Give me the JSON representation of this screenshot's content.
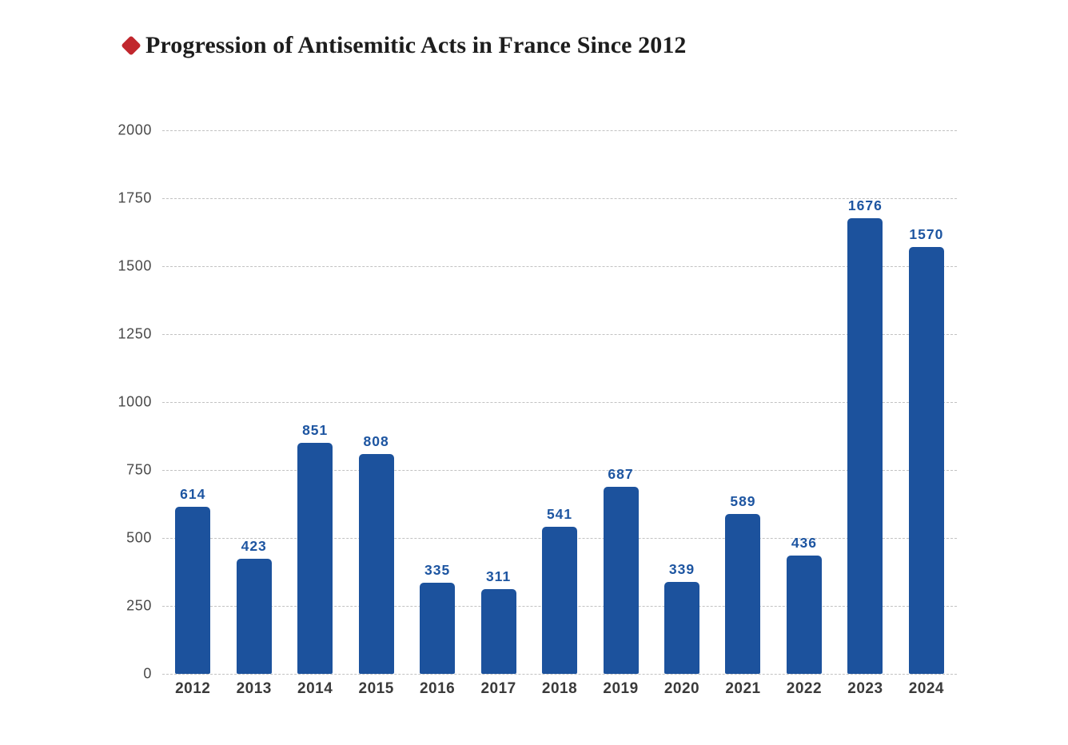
{
  "header": {
    "title": "Progression of Antisemitic Acts in France Since 2012",
    "bullet_icon": "red-diamond"
  },
  "chart_data": {
    "type": "bar",
    "title": "Progression of Antisemitic Acts in France Since 2012",
    "categories": [
      "2012",
      "2013",
      "2014",
      "2015",
      "2016",
      "2017",
      "2018",
      "2019",
      "2020",
      "2021",
      "2022",
      "2023",
      "2024"
    ],
    "values": [
      614,
      423,
      851,
      808,
      335,
      311,
      541,
      687,
      339,
      589,
      436,
      1676,
      1570
    ],
    "xlabel": "",
    "ylabel": "",
    "ylim": [
      0,
      2000
    ],
    "yticks": [
      2000,
      1750,
      1500,
      1250,
      1000,
      750,
      500,
      250,
      0
    ],
    "grid": "horizontal-dashed",
    "legend_position": "none",
    "bar_value_labels": true,
    "colors": {
      "bar": "#1c529d",
      "value_label": "#1d55a1",
      "axis_text": "#4a4a4a",
      "year_text": "#3a3a3a",
      "gridline": "#c2c2c2",
      "title_text": "#1d1d1d",
      "bullet_red": "#c1272d"
    }
  }
}
